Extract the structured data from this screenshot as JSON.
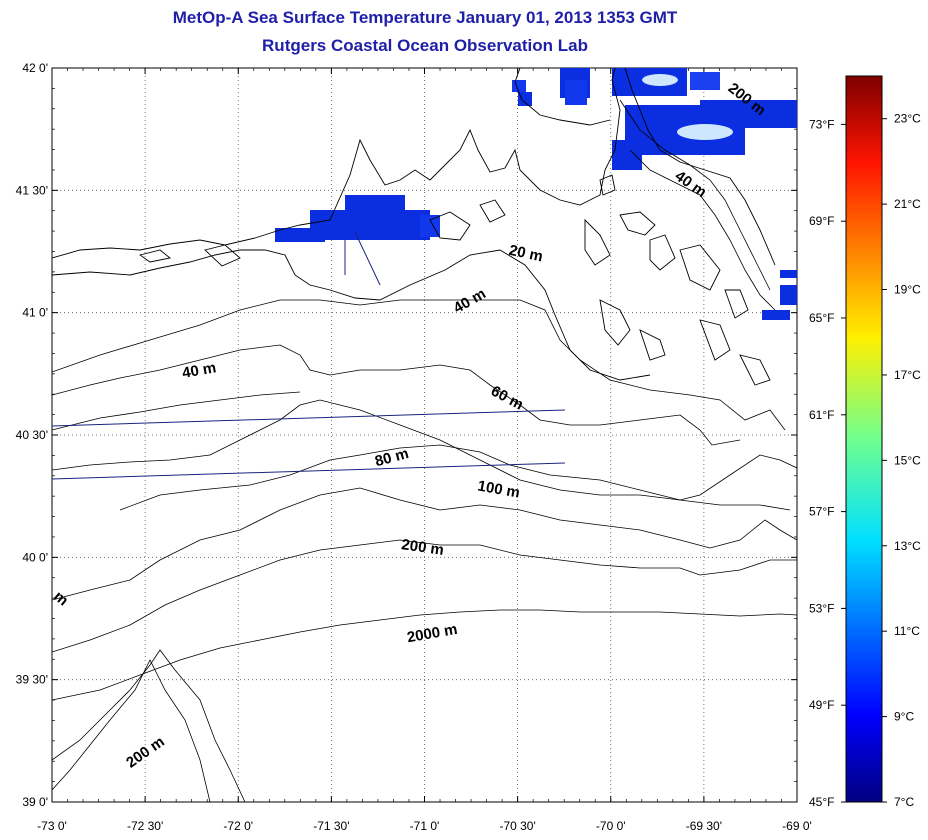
{
  "header": {
    "title": "MetOp-A Sea Surface Temperature January 01, 2013 1353 GMT",
    "subtitle": "Rutgers Coastal Ocean Observation Lab"
  },
  "map": {
    "lat_labels": [
      "42 0'",
      "41 30'",
      "41 0'",
      "40 30'",
      "40 0'",
      "39 30'",
      "39 0'"
    ],
    "lon_labels": [
      "-73 0'",
      "-72 30'",
      "-72 0'",
      "-71 30'",
      "-71 0'",
      "-70 30'",
      "-70 0'",
      "-69 30'",
      "-69 0'"
    ],
    "lat_range": [
      39.0,
      42.0
    ],
    "lon_range": [
      -73.0,
      -69.0
    ],
    "grid": true,
    "depth_labels": [
      "20 m",
      "40 m",
      "40 m",
      "60 m",
      "80 m",
      "100 m",
      "200 m",
      "2000 m",
      "200 m",
      "200 m",
      "40 m",
      "m"
    ],
    "colors": {
      "land_line": "#000000",
      "track_line": "#1a237e",
      "sst_patch": "#0a2ee0",
      "sst_light": "#cfe6ff"
    }
  },
  "colorbar": {
    "celsius_labels": [
      "23°C",
      "21°C",
      "19°C",
      "17°C",
      "15°C",
      "13°C",
      "11°C",
      "9°C",
      "7°C"
    ],
    "fahrenheit_labels": [
      "73°F",
      "69°F",
      "65°F",
      "61°F",
      "57°F",
      "53°F",
      "49°F",
      "45°F"
    ],
    "min_c": 7,
    "max_c": 24,
    "min_f": 45,
    "max_f": 75
  }
}
